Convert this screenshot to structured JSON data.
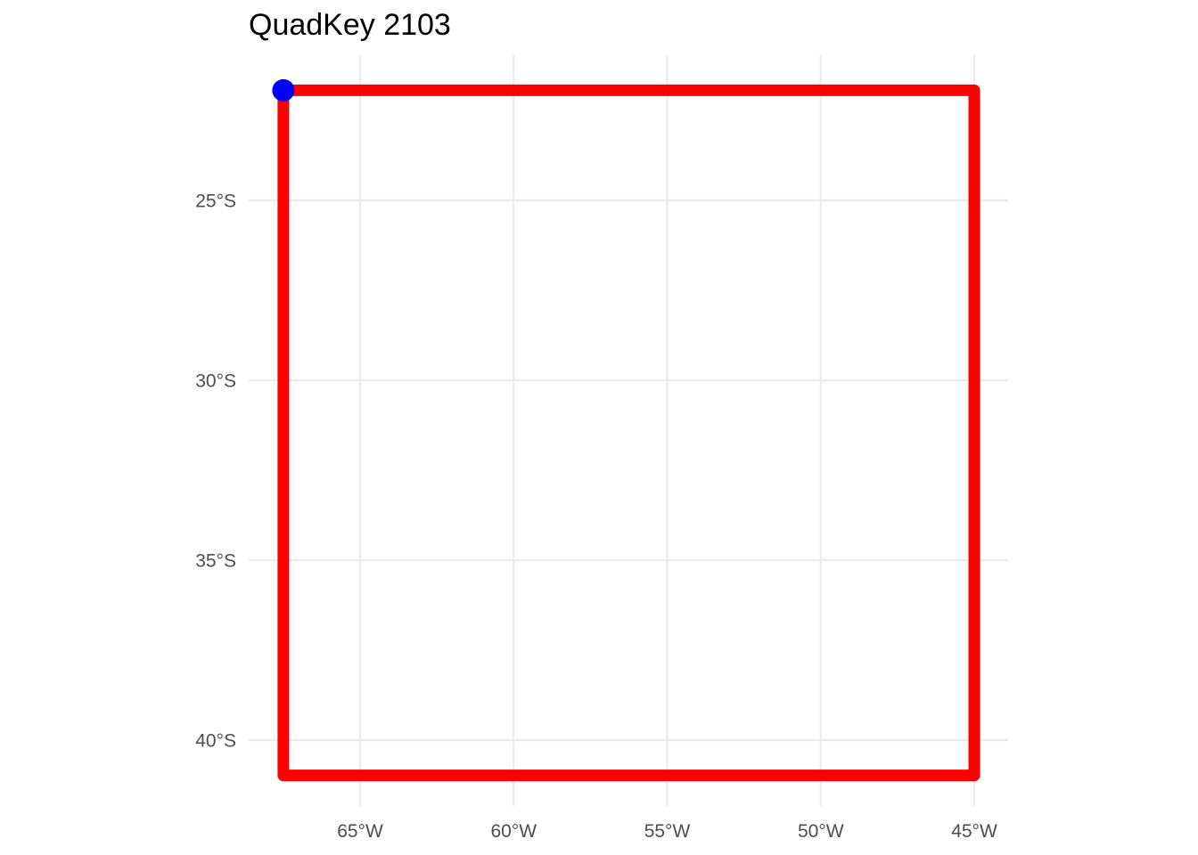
{
  "chart_data": {
    "type": "line",
    "title": "QuadKey 2103",
    "xlabel": "",
    "ylabel": "",
    "x_ticks": [
      {
        "value": -65,
        "label": "65°W"
      },
      {
        "value": -60,
        "label": "60°W"
      },
      {
        "value": -55,
        "label": "55°W"
      },
      {
        "value": -50,
        "label": "50°W"
      },
      {
        "value": -45,
        "label": "45°W"
      }
    ],
    "y_ticks": [
      {
        "value": -25,
        "label": "25°S"
      },
      {
        "value": -30,
        "label": "30°S"
      },
      {
        "value": -35,
        "label": "35°S"
      },
      {
        "value": -40,
        "label": "40°S"
      }
    ],
    "xlim": [
      -68.8,
      -44.0
    ],
    "ylim": [
      -42.0,
      -20.0
    ],
    "grid": true,
    "series": [
      {
        "kind": "polygon",
        "color": "#ff0000",
        "points": [
          {
            "lon": -67.5,
            "lat": -21.94
          },
          {
            "lon": -45.0,
            "lat": -21.94
          },
          {
            "lon": -45.0,
            "lat": -40.98
          },
          {
            "lon": -67.5,
            "lat": -40.98
          },
          {
            "lon": -67.5,
            "lat": -21.94
          }
        ]
      },
      {
        "kind": "point",
        "color": "#0000ff",
        "points": [
          {
            "lon": -67.5,
            "lat": -21.94
          }
        ]
      }
    ]
  }
}
